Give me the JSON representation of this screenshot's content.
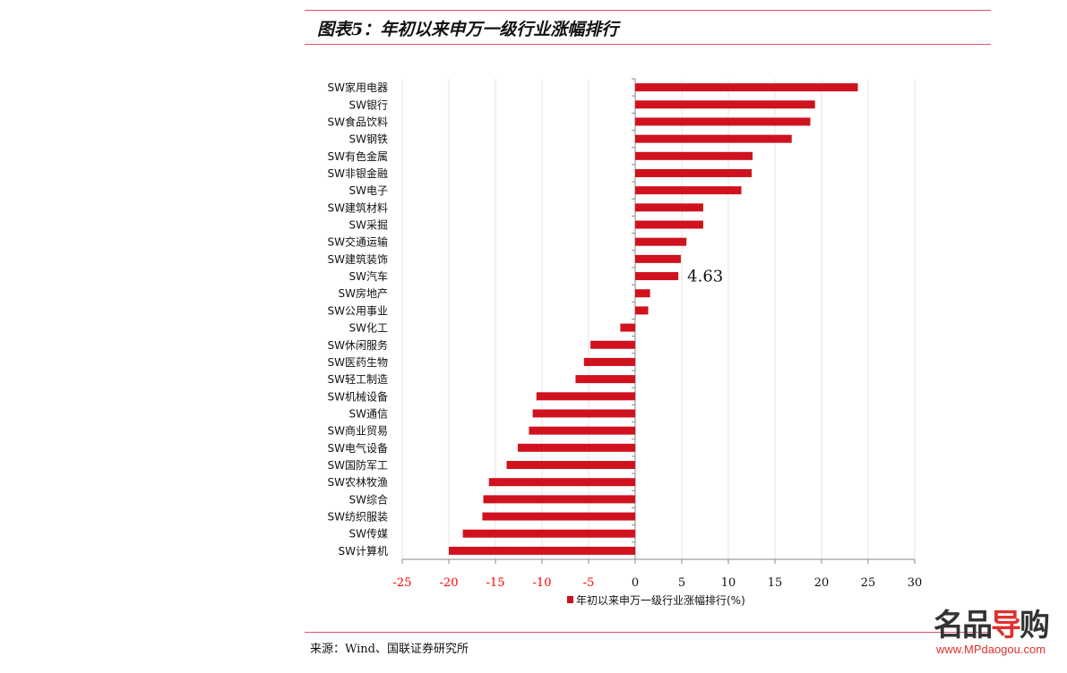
{
  "title": "图表5：年初以来申万一级行业涨幅排行",
  "source": "来源：Wind、国联证券研究所",
  "watermark": {
    "logo": "名品导购",
    "url": "www.MPdaogou.com"
  },
  "colors": {
    "bar": "#d0121f",
    "rule": "#d9536c",
    "negative_tick": "#ff0000",
    "grid": "#e6e6e6"
  },
  "chart_data": {
    "type": "bar",
    "orientation": "horizontal",
    "title": "图表5：年初以来申万一级行业涨幅排行",
    "xlabel": "",
    "ylabel": "",
    "xlim": [
      -25,
      30
    ],
    "xticks": [
      -25,
      -20,
      -15,
      -10,
      -5,
      0,
      5,
      10,
      15,
      20,
      25,
      30
    ],
    "grid": "vertical",
    "legend": {
      "position": "bottom",
      "entries": [
        "年初以来申万一级行业涨幅排行(%)"
      ]
    },
    "categories": [
      "SW家用电器",
      "SW银行",
      "SW食品饮料",
      "SW钢铁",
      "SW有色金属",
      "SW非银金融",
      "SW电子",
      "SW建筑材料",
      "SW采掘",
      "SW交通运输",
      "SW建筑装饰",
      "SW汽车",
      "SW房地产",
      "SW公用事业",
      "SW化工",
      "SW休闲服务",
      "SW医药生物",
      "SW轻工制造",
      "SW机械设备",
      "SW通信",
      "SW商业贸易",
      "SW电气设备",
      "SW国防军工",
      "SW农林牧渔",
      "SW综合",
      "SW纺织服装",
      "SW传媒",
      "SW计算机"
    ],
    "series": [
      {
        "name": "年初以来申万一级行业涨幅排行(%)",
        "values": [
          23.9,
          19.3,
          18.8,
          16.8,
          12.6,
          12.5,
          11.4,
          7.3,
          7.3,
          5.5,
          4.9,
          4.63,
          1.6,
          1.4,
          -1.6,
          -4.8,
          -5.5,
          -6.4,
          -10.6,
          -11.0,
          -11.4,
          -12.6,
          -13.8,
          -15.7,
          -16.3,
          -16.4,
          -18.5,
          -20.0
        ]
      }
    ],
    "annotations": [
      {
        "category": "SW汽车",
        "text": "4.63"
      }
    ]
  }
}
